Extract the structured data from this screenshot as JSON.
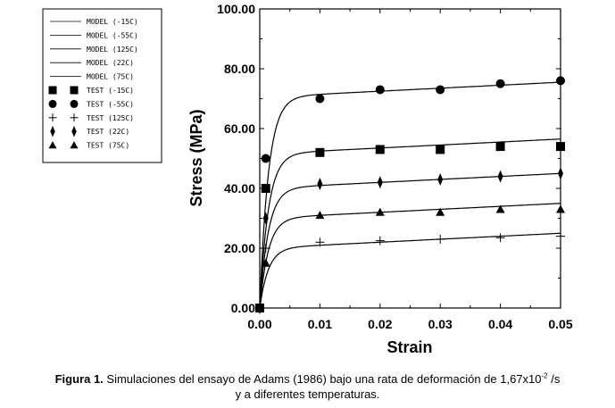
{
  "chart_data": {
    "type": "line",
    "xlabel": "Strain",
    "ylabel": "Stress (MPa)",
    "xlim": [
      0,
      0.05
    ],
    "ylim": [
      0,
      100
    ],
    "xticks": [
      "0.00",
      "0.01",
      "0.02",
      "0.03",
      "0.04",
      "0.05"
    ],
    "yticks": [
      "0.00",
      "20.00",
      "40.00",
      "60.00",
      "80.00",
      "100.00"
    ],
    "grid": false,
    "legend_position": "top-left",
    "model_series": [
      {
        "name": "MODEL (-15C)",
        "sat": 51.5,
        "slope": 100,
        "k": 700
      },
      {
        "name": "MODEL (-55C)",
        "sat": 70.5,
        "slope": 100,
        "k": 700
      },
      {
        "name": "MODEL (125C)",
        "sat": 20.0,
        "slope": 100,
        "k": 700
      },
      {
        "name": "MODEL (22C)",
        "sat": 40.0,
        "slope": 100,
        "k": 700
      },
      {
        "name": "MODEL (75C)",
        "sat": 30.0,
        "slope": 100,
        "k": 700
      }
    ],
    "test_series": [
      {
        "name": "TEST (-15C)",
        "marker": "square",
        "x": [
          0.0,
          0.001,
          0.01,
          0.02,
          0.03,
          0.04,
          0.05
        ],
        "y": [
          0,
          40,
          52,
          53,
          53,
          54,
          54
        ]
      },
      {
        "name": "TEST (-55C)",
        "marker": "circle",
        "x": [
          0.0,
          0.001,
          0.01,
          0.02,
          0.03,
          0.04,
          0.05
        ],
        "y": [
          0,
          50,
          70,
          73,
          73,
          75,
          76
        ]
      },
      {
        "name": "TEST (125C)",
        "marker": "plus",
        "x": [
          0.0,
          0.001,
          0.01,
          0.02,
          0.03,
          0.04,
          0.05
        ],
        "y": [
          0,
          20,
          22,
          22.5,
          23,
          23.5,
          24
        ]
      },
      {
        "name": "TEST (22C)",
        "marker": "diamond",
        "x": [
          0.0,
          0.001,
          0.01,
          0.02,
          0.03,
          0.04,
          0.05
        ],
        "y": [
          0,
          30,
          41.5,
          42,
          43,
          44,
          45
        ]
      },
      {
        "name": "TEST (75C)",
        "marker": "triangle",
        "x": [
          0.0,
          0.001,
          0.01,
          0.02,
          0.03,
          0.04,
          0.05
        ],
        "y": [
          0,
          15,
          31,
          32,
          32,
          33,
          33
        ]
      }
    ]
  },
  "caption": {
    "label": "Figura 1.",
    "line1_before_sup": " Simulaciones del ensayo de Adams (1986) bajo una rata de deformación de 1,67x10",
    "sup": "-2",
    "line1_after_sup": " /s",
    "line2": "y a diferentes temperaturas."
  }
}
